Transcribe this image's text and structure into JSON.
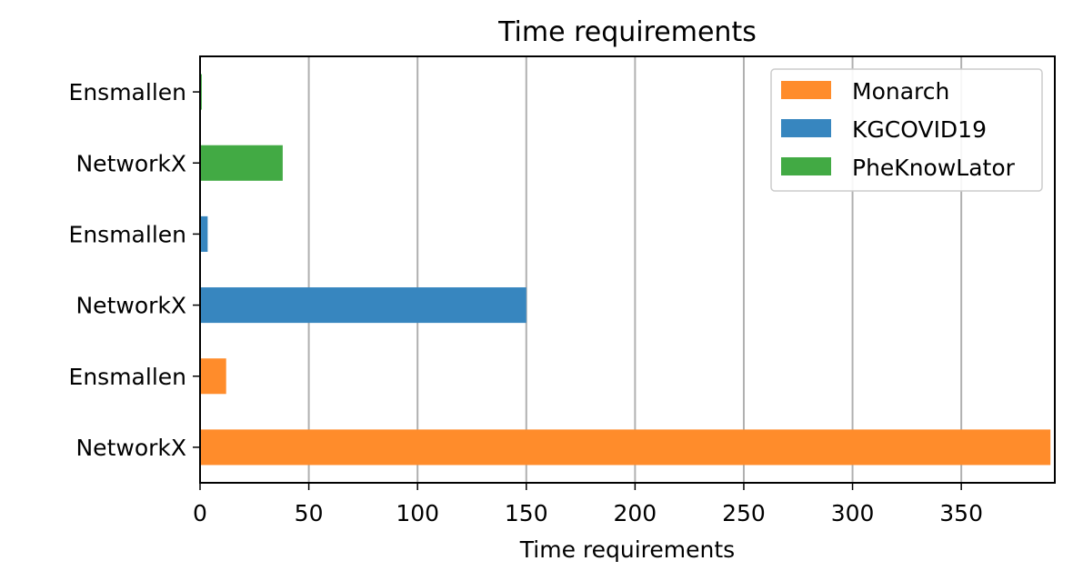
{
  "chart_data": {
    "type": "bar",
    "orientation": "horizontal",
    "title": "Time requirements",
    "xlabel": "Time requirements",
    "ylabel": "",
    "xlim": [
      0,
      393
    ],
    "xticks": [
      0,
      50,
      100,
      150,
      200,
      250,
      300,
      350
    ],
    "grid": "vertical",
    "legend_position": "top-right",
    "bars": [
      {
        "label": "NetworkX",
        "group": "Monarch",
        "value": 391
      },
      {
        "label": "Ensmallen",
        "group": "Monarch",
        "value": 12
      },
      {
        "label": "NetworkX",
        "group": "KGCOVID19",
        "value": 150
      },
      {
        "label": "Ensmallen",
        "group": "KGCOVID19",
        "value": 3.5
      },
      {
        "label": "NetworkX",
        "group": "PheKnowLator",
        "value": 38
      },
      {
        "label": "Ensmallen",
        "group": "PheKnowLator",
        "value": 0.8
      }
    ],
    "legend": [
      {
        "name": "Monarch",
        "color": "#ff8c2b"
      },
      {
        "name": "KGCOVID19",
        "color": "#3786bf"
      },
      {
        "name": "PheKnowLator",
        "color": "#42aa44"
      }
    ]
  }
}
